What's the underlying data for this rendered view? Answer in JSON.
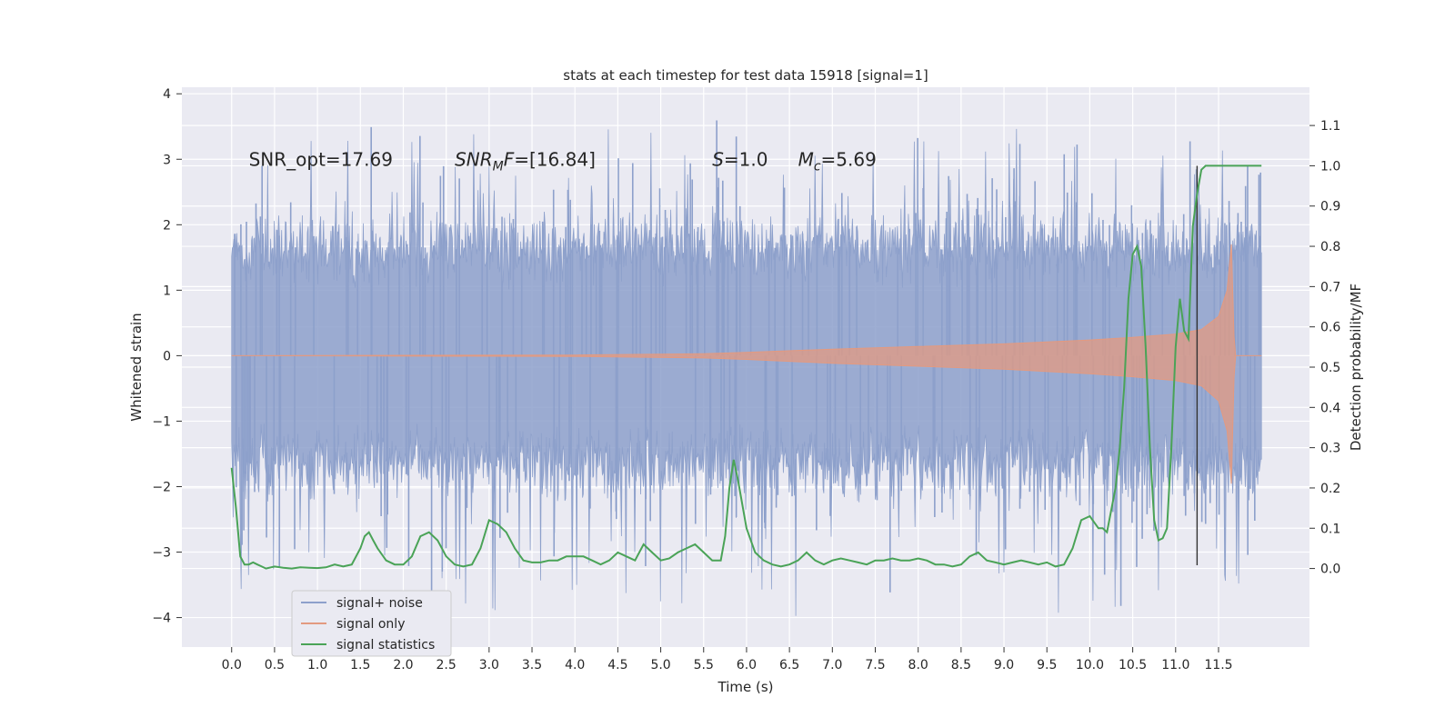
{
  "chart_data": {
    "type": "line",
    "title": "stats at each timestep for test data 15918 [signal=1]",
    "xlabel": "Time (s)",
    "ylabel": "Whitened strain",
    "ylabel_right": "Detection probability/MF",
    "xlim": [
      -0.58,
      12.56
    ],
    "ylim": [
      -4.45,
      4.1
    ],
    "ylim_right": [
      -0.195,
      1.195
    ],
    "x_ticks": [
      "0.0",
      "0.5",
      "1.0",
      "1.5",
      "2.0",
      "2.5",
      "3.0",
      "3.5",
      "4.0",
      "4.5",
      "5.0",
      "5.5",
      "6.0",
      "6.5",
      "7.0",
      "7.5",
      "8.0",
      "8.5",
      "9.0",
      "9.5",
      "10.0",
      "10.5",
      "11.0",
      "11.5"
    ],
    "y_ticks": [
      "−4",
      "−3",
      "−2",
      "−1",
      "0",
      "1",
      "2",
      "3",
      "4"
    ],
    "y_right_ticks": [
      "0.0",
      "0.1",
      "0.2",
      "0.3",
      "0.4",
      "0.5",
      "0.6",
      "0.7",
      "0.8",
      "0.9",
      "1.0",
      "1.1"
    ],
    "grid": true,
    "legend_position": "lower-left",
    "annotations": [
      {
        "text": "SNR_opt=17.69",
        "x": 0.2,
        "y": 3.0
      },
      {
        "text": "SNR_MF=[16.84]",
        "x": 2.6,
        "y": 3.0
      },
      {
        "text": "S=1.0",
        "x": 5.6,
        "y": 3.0
      },
      {
        "text": "M_c=5.69",
        "x": 6.6,
        "y": 3.0
      }
    ],
    "vline": {
      "x": 11.25,
      "ymin": -3.2,
      "ymax": 2.9,
      "color": "#333333"
    },
    "series": [
      {
        "name": "signal+ noise",
        "color": "#8da0cb",
        "kind": "noise",
        "x_range": [
          0.0,
          12.0
        ],
        "core_envelope": 1.65,
        "max_peak": 3.75,
        "min_trough": -4.1
      },
      {
        "name": "signal only",
        "color": "#e39a80",
        "kind": "chirp",
        "envelope_x": [
          0.0,
          4.0,
          5.5,
          6.0,
          7.0,
          8.0,
          9.0,
          10.0,
          10.5,
          11.0,
          11.3,
          11.5,
          11.6,
          11.65,
          11.68,
          11.7,
          12.0
        ],
        "envelope_y": [
          0.0,
          0.01,
          0.03,
          0.05,
          0.1,
          0.14,
          0.18,
          0.24,
          0.28,
          0.33,
          0.4,
          0.6,
          1.0,
          1.7,
          0.3,
          0.0,
          0.0
        ]
      },
      {
        "name": "signal statistics",
        "color": "#4aa357",
        "axis": "right",
        "x": [
          0.0,
          0.05,
          0.1,
          0.15,
          0.2,
          0.25,
          0.3,
          0.35,
          0.4,
          0.5,
          0.6,
          0.7,
          0.8,
          0.9,
          1.0,
          1.1,
          1.2,
          1.3,
          1.4,
          1.5,
          1.55,
          1.6,
          1.65,
          1.7,
          1.8,
          1.9,
          2.0,
          2.1,
          2.2,
          2.3,
          2.4,
          2.5,
          2.6,
          2.7,
          2.8,
          2.9,
          3.0,
          3.1,
          3.2,
          3.3,
          3.4,
          3.5,
          3.6,
          3.7,
          3.8,
          3.9,
          4.0,
          4.1,
          4.2,
          4.3,
          4.4,
          4.5,
          4.6,
          4.7,
          4.8,
          4.9,
          5.0,
          5.1,
          5.2,
          5.3,
          5.4,
          5.5,
          5.6,
          5.7,
          5.75,
          5.8,
          5.85,
          5.9,
          5.95,
          6.0,
          6.1,
          6.2,
          6.3,
          6.4,
          6.5,
          6.6,
          6.7,
          6.8,
          6.9,
          7.0,
          7.1,
          7.2,
          7.3,
          7.4,
          7.5,
          7.6,
          7.7,
          7.8,
          7.9,
          8.0,
          8.1,
          8.2,
          8.3,
          8.4,
          8.5,
          8.6,
          8.7,
          8.8,
          8.9,
          9.0,
          9.1,
          9.2,
          9.3,
          9.4,
          9.5,
          9.6,
          9.7,
          9.8,
          9.9,
          10.0,
          10.1,
          10.15,
          10.2,
          10.3,
          10.35,
          10.4,
          10.45,
          10.5,
          10.55,
          10.6,
          10.65,
          10.7,
          10.75,
          10.8,
          10.85,
          10.9,
          10.95,
          11.0,
          11.05,
          11.1,
          11.15,
          11.2,
          11.25,
          11.3,
          11.35,
          11.4,
          11.5,
          11.6,
          11.7,
          11.8,
          11.9,
          12.0
        ],
        "y": [
          0.25,
          0.15,
          0.03,
          0.01,
          0.01,
          0.015,
          0.01,
          0.005,
          0.0,
          0.005,
          0.002,
          0.0,
          0.003,
          0.002,
          0.001,
          0.003,
          0.01,
          0.005,
          0.01,
          0.05,
          0.08,
          0.09,
          0.07,
          0.05,
          0.02,
          0.01,
          0.01,
          0.03,
          0.08,
          0.09,
          0.07,
          0.03,
          0.01,
          0.005,
          0.01,
          0.05,
          0.12,
          0.11,
          0.09,
          0.05,
          0.02,
          0.015,
          0.015,
          0.02,
          0.02,
          0.03,
          0.03,
          0.03,
          0.02,
          0.01,
          0.02,
          0.04,
          0.03,
          0.02,
          0.06,
          0.04,
          0.02,
          0.025,
          0.04,
          0.05,
          0.06,
          0.04,
          0.02,
          0.02,
          0.08,
          0.2,
          0.27,
          0.22,
          0.16,
          0.1,
          0.04,
          0.02,
          0.01,
          0.005,
          0.01,
          0.02,
          0.04,
          0.02,
          0.01,
          0.02,
          0.025,
          0.02,
          0.015,
          0.01,
          0.02,
          0.02,
          0.025,
          0.02,
          0.02,
          0.025,
          0.02,
          0.01,
          0.01,
          0.005,
          0.01,
          0.03,
          0.04,
          0.02,
          0.015,
          0.01,
          0.015,
          0.02,
          0.015,
          0.01,
          0.015,
          0.005,
          0.01,
          0.05,
          0.12,
          0.13,
          0.1,
          0.1,
          0.09,
          0.2,
          0.3,
          0.45,
          0.67,
          0.78,
          0.8,
          0.75,
          0.55,
          0.3,
          0.12,
          0.07,
          0.075,
          0.1,
          0.3,
          0.55,
          0.67,
          0.59,
          0.57,
          0.85,
          0.93,
          0.99,
          1.0,
          1.0,
          1.0,
          1.0,
          1.0,
          1.0,
          1.0,
          1.0
        ]
      }
    ]
  }
}
